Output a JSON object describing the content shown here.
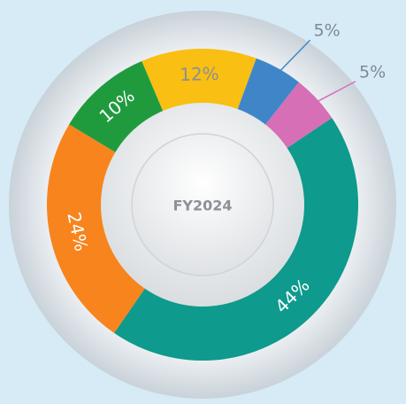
{
  "chart_data": {
    "type": "donut",
    "center_label": "FY2024",
    "categories": [
      null,
      null,
      null,
      null,
      null,
      null
    ],
    "values": [
      12,
      5,
      5,
      44,
      24,
      10
    ],
    "value_labels": [
      "12%",
      "5%",
      "5%",
      "44%",
      "24%",
      "10%"
    ],
    "colors": [
      "#f9bf12",
      "#3f86c9",
      "#d66fb5",
      "#0e9a8c",
      "#f7841d",
      "#1f9b3e"
    ]
  }
}
